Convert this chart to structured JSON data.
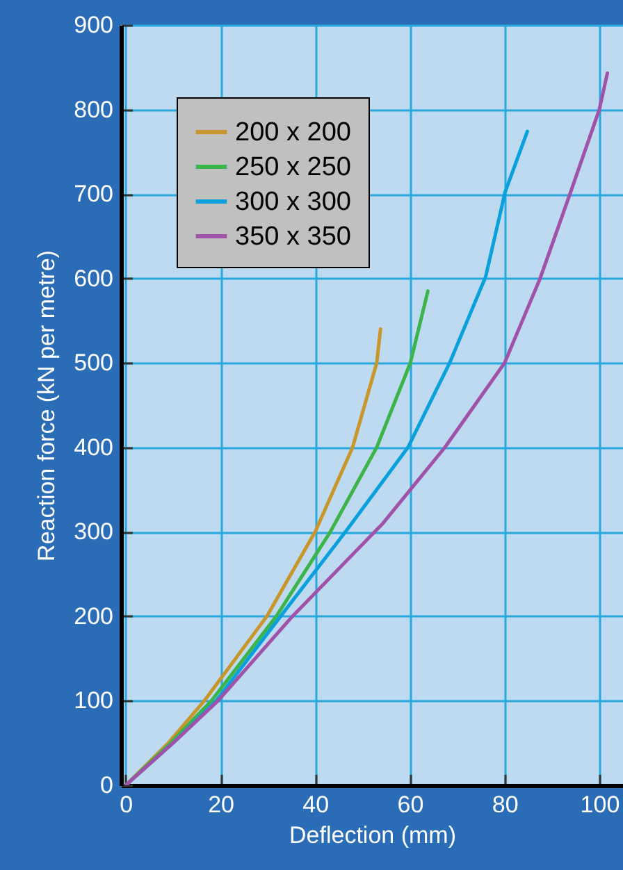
{
  "chart_data": {
    "type": "line",
    "xlabel": "Deflection (mm)",
    "ylabel": "Reaction force (kN per metre)",
    "xlim": [
      -1,
      105
    ],
    "ylim": [
      0,
      900
    ],
    "xticks": [
      0,
      20,
      40,
      60,
      80,
      100
    ],
    "yticks": [
      0,
      100,
      200,
      300,
      400,
      500,
      600,
      700,
      800,
      900
    ],
    "grid": true,
    "legend": "top left",
    "line_style": "solid",
    "marker": "none",
    "series": [
      {
        "name": "200 x 200",
        "color": "#c8962a",
        "x": [
          0,
          9,
          16.6,
          29.8,
          40,
          47.9,
          53,
          53.8
        ],
        "values": [
          0,
          50,
          100,
          200,
          300,
          400,
          500,
          540
        ]
      },
      {
        "name": "250 x 250",
        "color": "#3cb44a",
        "x": [
          0,
          9.5,
          18.1,
          31.8,
          43.2,
          53,
          60.1,
          63.8
        ],
        "values": [
          0,
          50,
          100,
          200,
          300,
          400,
          500,
          585
        ]
      },
      {
        "name": "300 x 300",
        "color": "#0aa0dc",
        "x": [
          0,
          10,
          19.1,
          32.7,
          46.4,
          59.6,
          68.4,
          76,
          80.1,
          84.8
        ],
        "values": [
          0,
          50,
          100,
          200,
          300,
          400,
          500,
          602,
          702,
          774
        ]
      },
      {
        "name": "350 x 350",
        "color": "#a052a8",
        "x": [
          0,
          10,
          19.5,
          35.2,
          54.3,
          67.4,
          80,
          87.5,
          93.8,
          100,
          101.7
        ],
        "values": [
          0,
          50,
          100,
          200,
          310,
          400,
          500,
          600,
          700,
          800,
          843
        ]
      }
    ]
  }
}
